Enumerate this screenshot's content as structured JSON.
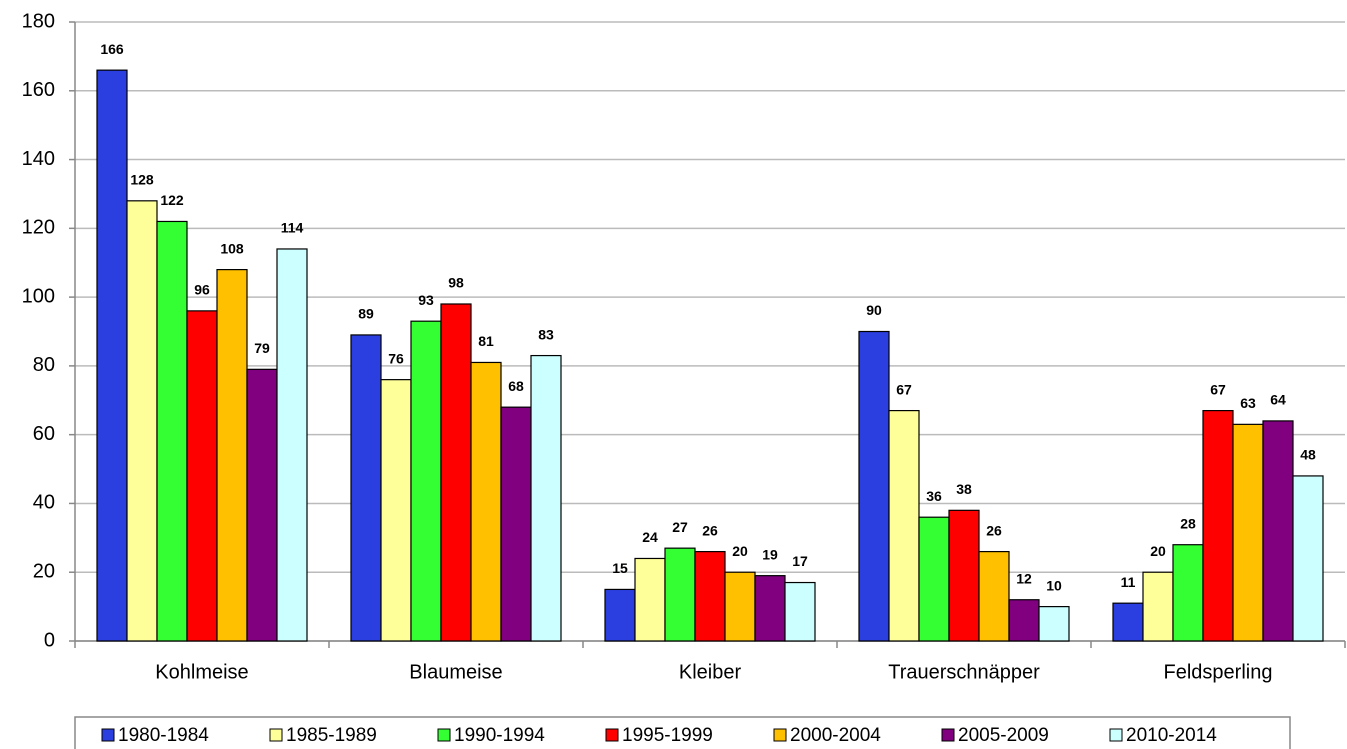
{
  "chart_data": {
    "type": "bar",
    "categories": [
      "Kohlmeise",
      "Blaumeise",
      "Kleiber",
      "Trauerschnäpper",
      "Feldsperling"
    ],
    "series": [
      {
        "name": "1980-1984",
        "color": "#2b3fe0",
        "values": [
          166,
          89,
          15,
          90,
          11
        ]
      },
      {
        "name": "1985-1989",
        "color": "#ffff99",
        "values": [
          128,
          76,
          24,
          67,
          20
        ]
      },
      {
        "name": "1990-1994",
        "color": "#33ff33",
        "values": [
          122,
          93,
          27,
          36,
          28
        ]
      },
      {
        "name": "1995-1999",
        "color": "#ff0000",
        "values": [
          96,
          98,
          26,
          38,
          67
        ]
      },
      {
        "name": "2000-2004",
        "color": "#ffc000",
        "values": [
          108,
          81,
          20,
          26,
          63
        ]
      },
      {
        "name": "2005-2009",
        "color": "#800080",
        "values": [
          79,
          68,
          19,
          12,
          64
        ]
      },
      {
        "name": "2010-2014",
        "color": "#ccffff",
        "values": [
          114,
          83,
          17,
          10,
          48
        ]
      }
    ],
    "ylim": [
      0,
      180
    ],
    "yticks": [
      0,
      20,
      40,
      60,
      80,
      100,
      120,
      140,
      160,
      180
    ],
    "grid": true,
    "legend": "bottom"
  }
}
